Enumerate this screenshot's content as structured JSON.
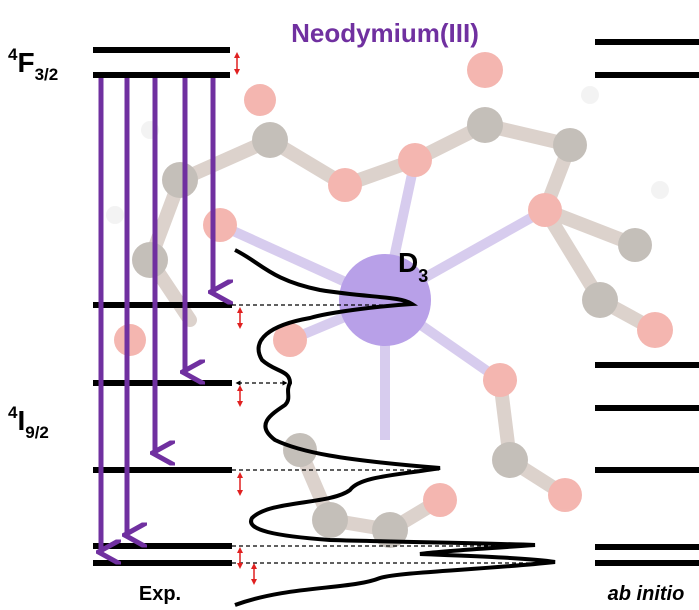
{
  "title": "Neodymium(III)",
  "upper_state": {
    "sup": "4",
    "main": "F",
    "sub": "3/2"
  },
  "lower_state": {
    "sup": "4",
    "main": "I",
    "sub": "9/2"
  },
  "symmetry": {
    "main": "D",
    "sub": "3"
  },
  "columns": {
    "left": "Exp.",
    "right": "ab initio"
  }
}
